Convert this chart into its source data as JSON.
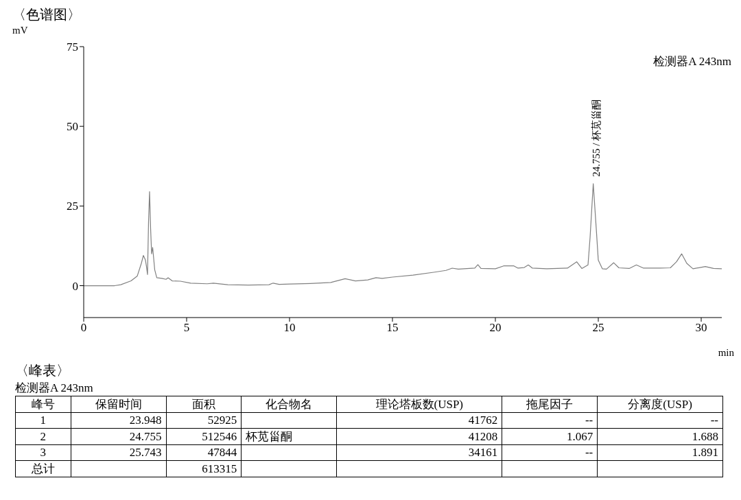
{
  "chart_data": [
    {
      "type": "line",
      "title": "〈色谱图〉",
      "ylabel": "mV",
      "xlabel": "min",
      "xlim": [
        0,
        31
      ],
      "ylim": [
        -10,
        75
      ],
      "xticks": [
        0,
        5,
        10,
        15,
        20,
        25,
        30
      ],
      "yticks": [
        0,
        25,
        50,
        75
      ],
      "grid": false,
      "marker": "none",
      "annotations": [
        "检测器A 243nm",
        {
          "text": "24.755 / 杯苋甾酮",
          "x": 24.755,
          "y": 32
        }
      ],
      "series": [
        {
          "color": "#808080",
          "x": [
            0,
            1.5,
            1.8,
            2.3,
            2.6,
            2.8,
            2.9,
            3.0,
            3.05,
            3.1,
            3.15,
            3.2,
            3.25,
            3.3,
            3.35,
            3.45,
            3.55,
            3.8,
            4.0,
            4.1,
            4.3,
            4.7,
            5.2,
            6.0,
            6.3,
            7.0,
            8.0,
            9.0,
            9.2,
            9.5,
            10,
            11,
            12,
            12.7,
            13.2,
            13.8,
            14.2,
            14.5,
            15,
            16,
            17,
            17.6,
            17.9,
            18.2,
            19,
            19.15,
            19.3,
            20,
            20.4,
            20.9,
            21.1,
            21.4,
            21.6,
            21.8,
            22.5,
            23,
            23.5,
            23.95,
            24.2,
            24.5,
            24.6,
            24.755,
            24.9,
            25.0,
            25.2,
            25.4,
            25.75,
            26,
            26.5,
            26.85,
            27.2,
            28,
            28.5,
            28.8,
            29.05,
            29.3,
            29.6,
            30.2,
            30.6,
            31
          ],
          "values": [
            0,
            0,
            0.3,
            1.5,
            3,
            7,
            9.5,
            8,
            6,
            3.5,
            20,
            29.5,
            18,
            10,
            12,
            5,
            2.5,
            2.3,
            2,
            2.5,
            1.5,
            1.4,
            0.8,
            0.6,
            0.8,
            0.3,
            0.2,
            0.3,
            0.8,
            0.4,
            0.5,
            0.7,
            1.0,
            2.2,
            1.5,
            1.8,
            2.5,
            2.3,
            2.7,
            3.3,
            4.2,
            4.8,
            5.5,
            5.2,
            5.5,
            6.6,
            5.4,
            5.3,
            6.2,
            6.2,
            5.5,
            5.7,
            6.5,
            5.5,
            5.3,
            5.4,
            5.5,
            7.5,
            5.4,
            6.5,
            15,
            32,
            18,
            8,
            5.3,
            5.2,
            7.2,
            5.6,
            5.4,
            6.5,
            5.5,
            5.5,
            5.6,
            7.5,
            10,
            7,
            5.3,
            6,
            5.4,
            5.3
          ]
        }
      ]
    },
    {
      "type": "other",
      "title": "〈峰表〉",
      "subtitle": "检测器A 243nm",
      "categories": [
        "峰号",
        "保留时间",
        "面积",
        "化合物名",
        "理论塔板数(USP)",
        "拖尾因子",
        "分离度(USP)"
      ],
      "cell_labels": [
        [
          "1",
          "23.948",
          "52925",
          null,
          "41762",
          "--",
          "--"
        ],
        [
          "2",
          "24.755",
          "512546",
          "杯苋甾酮",
          "41208",
          "1.067",
          "1.688"
        ],
        [
          "3",
          "25.743",
          "47844",
          null,
          "34161",
          "--",
          "1.891"
        ],
        [
          "总计",
          null,
          "613315",
          null,
          null,
          null,
          null
        ]
      ]
    }
  ]
}
